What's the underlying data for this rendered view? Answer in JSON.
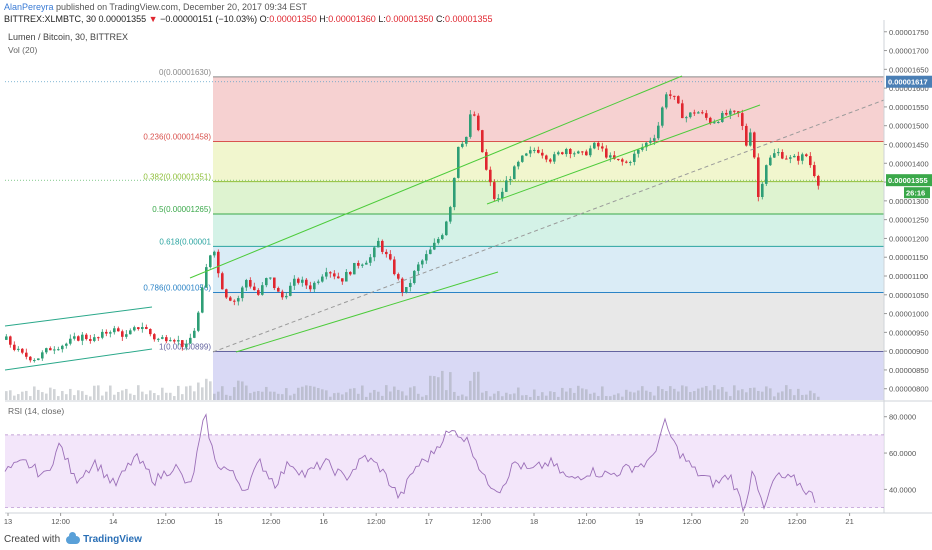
{
  "header": {
    "user": "AlanPereyra",
    "published": " published on TradingView.com, December 20, 2017 09:34 EST",
    "symbol": "BITTREX:XLMBTC, 30",
    "change_arrow": "▼",
    "change": "−0.00000151 (−10.03%)",
    "open_label": "O:",
    "open": "0.00001350",
    "high_label": "H:",
    "high": "0.00001360",
    "low_label": "L:",
    "low": "0.00001350",
    "close_label": "C:",
    "close": "0.00001355",
    "first_price": "0.00001355"
  },
  "footer": {
    "created_with": "Created with",
    "brand": "TradingView"
  },
  "colors": {
    "up": "#2e9e76",
    "down": "#e0262f",
    "channel": "#4ccb3a",
    "rsi": "#9b6fb8"
  },
  "chart_data": {
    "type": "candlestick",
    "title": "Lumen / Bitcoin, 30, BITTREX",
    "volume_label": "Vol (20)",
    "rsi_label": "RSI (14, close)",
    "y_ticks": [
      "0.00001750",
      "0.00001700",
      "0.00001650",
      "0.00001600",
      "0.00001550",
      "0.00001500",
      "0.00001450",
      "0.00001400",
      "0.00001350",
      "0.00001300",
      "0.00001250",
      "0.00001200",
      "0.00001150",
      "0.00001100",
      "0.00001050",
      "0.00001000",
      "0.00000950",
      "0.00000900",
      "0.00000850",
      "0.00000800"
    ],
    "ylim": [
      7.7e-06,
      1.76e-05
    ],
    "rsi_ticks": [
      "80.0000",
      "60.0000",
      "40.0000"
    ],
    "rsi_lim": [
      27,
      87
    ],
    "x_ticks": [
      "13",
      "12:00",
      "14",
      "12:00",
      "15",
      "12:00",
      "16",
      "12:00",
      "17",
      "12:00",
      "18",
      "12:00",
      "19",
      "12:00",
      "20",
      "12:00",
      "21"
    ],
    "last_price": "0.00001355",
    "high_marker": "0.00001617",
    "countdown": "26:16",
    "fib_levels": [
      {
        "label": "0(0.00001630)",
        "value": 1.63e-05,
        "color": "#8a8a8a",
        "fill": "#f4c9c9"
      },
      {
        "label": "0.236(0.00001458)",
        "value": 1.458e-05,
        "color": "#d9534f",
        "fill": "#eef4c5"
      },
      {
        "label": "0.382(0.00001351)",
        "value": 1.351e-05,
        "color": "#8fbf3a",
        "fill": "#d8f1c8"
      },
      {
        "label": "0.5(0.00001265)",
        "value": 1.265e-05,
        "color": "#3aa84a",
        "fill": "#cdf0e3"
      },
      {
        "label": "0.618(0.00001",
        "value": 1.179e-05,
        "color": "#2aa4a0",
        "fill": "#d3e9f5"
      },
      {
        "label": "0.786(0.00001056)",
        "value": 1.056e-05,
        "color": "#2b83c6",
        "fill": "#e4e4e4"
      },
      {
        "label": "1(0.00000899)",
        "value": 8.99e-06,
        "color": "#6464a0",
        "fill": "#d2d2f3"
      }
    ],
    "close_series": [
      [
        0,
        9.3e-06
      ],
      [
        15,
        8.9e-06
      ],
      [
        30,
        8.8e-06
      ],
      [
        45,
        9.1e-06
      ],
      [
        60,
        9.2e-06
      ],
      [
        75,
        9.4e-06
      ],
      [
        90,
        9.3e-06
      ],
      [
        105,
        9.6e-06
      ],
      [
        120,
        9.4e-06
      ],
      [
        135,
        9.7e-06
      ],
      [
        150,
        9.3e-06
      ],
      [
        165,
        9.4e-06
      ],
      [
        180,
        9.1e-06
      ],
      [
        190,
        9.7e-06
      ],
      [
        200,
        1.12e-05
      ],
      [
        207,
        1.19e-05
      ],
      [
        213,
        1.09e-05
      ],
      [
        220,
        1.05e-05
      ],
      [
        230,
        1.03e-05
      ],
      [
        240,
        1.09e-05
      ],
      [
        252,
        1.05e-05
      ],
      [
        262,
        1.1e-05
      ],
      [
        275,
        1.04e-05
      ],
      [
        290,
        1.09e-05
      ],
      [
        305,
        1.07e-05
      ],
      [
        320,
        1.12e-05
      ],
      [
        335,
        1.09e-05
      ],
      [
        350,
        1.13e-05
      ],
      [
        365,
        1.15e-05
      ],
      [
        372,
        1.19e-05
      ],
      [
        385,
        1.13e-05
      ],
      [
        398,
        1.05e-05
      ],
      [
        410,
        1.12e-05
      ],
      [
        425,
        1.17e-05
      ],
      [
        437,
        1.22e-05
      ],
      [
        445,
        1.3e-05
      ],
      [
        452,
        1.45e-05
      ],
      [
        460,
        1.47e-05
      ],
      [
        466,
        1.55e-05
      ],
      [
        472,
        1.48e-05
      ],
      [
        480,
        1.38e-05
      ],
      [
        490,
        1.29e-05
      ],
      [
        500,
        1.35e-05
      ],
      [
        515,
        1.41e-05
      ],
      [
        530,
        1.44e-05
      ],
      [
        545,
        1.41e-05
      ],
      [
        560,
        1.44e-05
      ],
      [
        575,
        1.42e-05
      ],
      [
        590,
        1.45e-05
      ],
      [
        605,
        1.41e-05
      ],
      [
        620,
        1.4e-05
      ],
      [
        635,
        1.44e-05
      ],
      [
        650,
        1.48e-05
      ],
      [
        660,
        1.59e-05
      ],
      [
        668,
        1.57e-05
      ],
      [
        678,
        1.52e-05
      ],
      [
        690,
        1.54e-05
      ],
      [
        705,
        1.51e-05
      ],
      [
        720,
        1.53e-05
      ],
      [
        733,
        1.53e-05
      ],
      [
        740,
        1.45e-05
      ],
      [
        745,
        1.5e-05
      ],
      [
        752,
        1.31e-05
      ],
      [
        760,
        1.4e-05
      ],
      [
        770,
        1.43e-05
      ],
      [
        785,
        1.41e-05
      ],
      [
        800,
        1.42e-05
      ],
      [
        812,
        1.35e-05
      ]
    ],
    "rsi_series": [
      [
        0,
        50
      ],
      [
        20,
        55
      ],
      [
        40,
        47
      ],
      [
        55,
        65
      ],
      [
        70,
        45
      ],
      [
        90,
        55
      ],
      [
        110,
        42
      ],
      [
        130,
        58
      ],
      [
        150,
        45
      ],
      [
        170,
        53
      ],
      [
        185,
        40
      ],
      [
        200,
        81
      ],
      [
        210,
        55
      ],
      [
        225,
        50
      ],
      [
        240,
        40
      ],
      [
        255,
        55
      ],
      [
        270,
        43
      ],
      [
        285,
        55
      ],
      [
        300,
        48
      ],
      [
        320,
        55
      ],
      [
        340,
        46
      ],
      [
        360,
        58
      ],
      [
        375,
        52
      ],
      [
        395,
        35
      ],
      [
        410,
        52
      ],
      [
        425,
        58
      ],
      [
        440,
        70
      ],
      [
        452,
        72
      ],
      [
        465,
        65
      ],
      [
        480,
        45
      ],
      [
        495,
        40
      ],
      [
        510,
        55
      ],
      [
        525,
        50
      ],
      [
        545,
        55
      ],
      [
        565,
        45
      ],
      [
        585,
        50
      ],
      [
        605,
        48
      ],
      [
        625,
        52
      ],
      [
        645,
        55
      ],
      [
        660,
        76
      ],
      [
        672,
        62
      ],
      [
        690,
        50
      ],
      [
        710,
        43
      ],
      [
        725,
        48
      ],
      [
        740,
        28
      ],
      [
        748,
        55
      ],
      [
        758,
        27
      ],
      [
        770,
        47
      ],
      [
        790,
        45
      ],
      [
        812,
        34
      ]
    ],
    "channel_lines": [
      [
        [
          5,
          326
        ],
        [
          152,
          307
        ]
      ],
      [
        [
          5,
          370
        ],
        [
          152,
          349
        ]
      ],
      [
        [
          190,
          278
        ],
        [
          682,
          76
        ]
      ],
      [
        [
          236,
          352
        ],
        [
          498,
          272
        ]
      ],
      [
        [
          487,
          204
        ],
        [
          760,
          105
        ]
      ],
      [
        [
          213,
          352
        ],
        [
          884,
          100
        ]
      ]
    ]
  }
}
